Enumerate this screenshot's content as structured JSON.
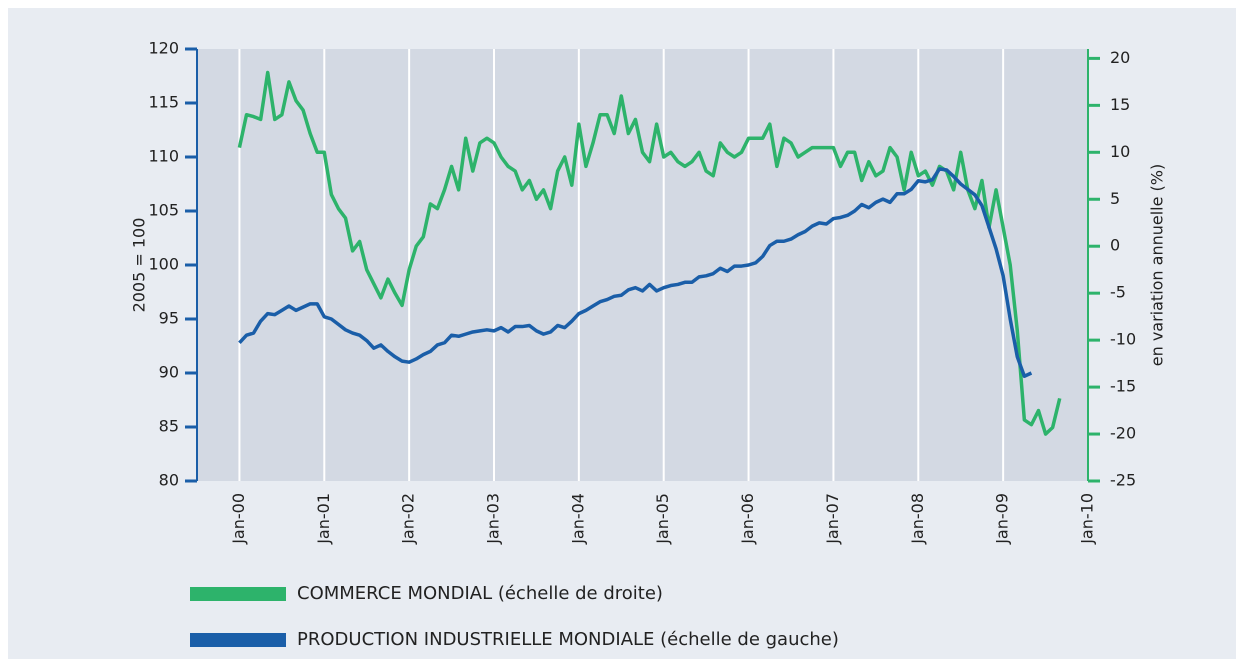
{
  "chart_data": {
    "type": "line",
    "x": [
      "2000-01",
      "2000-02",
      "2000-03",
      "2000-04",
      "2000-05",
      "2000-06",
      "2000-07",
      "2000-08",
      "2000-09",
      "2000-10",
      "2000-11",
      "2000-12",
      "2001-01",
      "2001-02",
      "2001-03",
      "2001-04",
      "2001-05",
      "2001-06",
      "2001-07",
      "2001-08",
      "2001-09",
      "2001-10",
      "2001-11",
      "2001-12",
      "2002-01",
      "2002-02",
      "2002-03",
      "2002-04",
      "2002-05",
      "2002-06",
      "2002-07",
      "2002-08",
      "2002-09",
      "2002-10",
      "2002-11",
      "2002-12",
      "2003-01",
      "2003-02",
      "2003-03",
      "2003-04",
      "2003-05",
      "2003-06",
      "2003-07",
      "2003-08",
      "2003-09",
      "2003-10",
      "2003-11",
      "2003-12",
      "2004-01",
      "2004-02",
      "2004-03",
      "2004-04",
      "2004-05",
      "2004-06",
      "2004-07",
      "2004-08",
      "2004-09",
      "2004-10",
      "2004-11",
      "2004-12",
      "2005-01",
      "2005-02",
      "2005-03",
      "2005-04",
      "2005-05",
      "2005-06",
      "2005-07",
      "2005-08",
      "2005-09",
      "2005-10",
      "2005-11",
      "2005-12",
      "2006-01",
      "2006-02",
      "2006-03",
      "2006-04",
      "2006-05",
      "2006-06",
      "2006-07",
      "2006-08",
      "2006-09",
      "2006-10",
      "2006-11",
      "2006-12",
      "2007-01",
      "2007-02",
      "2007-03",
      "2007-04",
      "2007-05",
      "2007-06",
      "2007-07",
      "2007-08",
      "2007-09",
      "2007-10",
      "2007-11",
      "2007-12",
      "2008-01",
      "2008-02",
      "2008-03",
      "2008-04",
      "2008-05",
      "2008-06",
      "2008-07",
      "2008-08",
      "2008-09",
      "2008-10",
      "2008-11",
      "2008-12",
      "2009-01",
      "2009-02",
      "2009-03",
      "2009-04",
      "2009-05",
      "2009-06",
      "2009-07",
      "2009-08",
      "2009-09"
    ],
    "xlim": [
      "1999-07",
      "2010-01"
    ],
    "xticks": [
      {
        "value": "2000-01",
        "label": "Jan-00"
      },
      {
        "value": "2001-01",
        "label": "Jan-01"
      },
      {
        "value": "2002-01",
        "label": "Jan-02"
      },
      {
        "value": "2003-01",
        "label": "Jan-03"
      },
      {
        "value": "2004-01",
        "label": "Jan-04"
      },
      {
        "value": "2005-01",
        "label": "Jan-05"
      },
      {
        "value": "2006-01",
        "label": "Jan-06"
      },
      {
        "value": "2007-01",
        "label": "Jan-07"
      },
      {
        "value": "2008-01",
        "label": "Jan-08"
      },
      {
        "value": "2009-01",
        "label": "Jan-09"
      },
      {
        "value": "2010-01",
        "label": "Jan-10"
      }
    ],
    "ylim": [
      80,
      120
    ],
    "yticks": [
      80,
      85,
      90,
      95,
      100,
      105,
      110,
      115,
      120
    ],
    "y2lim": [
      -25,
      21
    ],
    "y2ticks": [
      -25,
      -20,
      -15,
      -10,
      -5,
      0,
      5,
      10,
      15,
      20
    ],
    "ylabel": "2005 = 100",
    "y2label": "en variation annuelle (%)",
    "series": [
      {
        "name": "COMMERCE MONDIAL (échelle de droite)",
        "color": "#2db36b",
        "axis": "y2",
        "values": [
          10.5,
          14.0,
          13.8,
          13.5,
          18.5,
          13.5,
          14.0,
          17.5,
          15.5,
          14.5,
          12.0,
          10.0,
          10.0,
          5.5,
          4.0,
          3.0,
          -0.5,
          0.5,
          -2.5,
          -4.0,
          -5.5,
          -3.5,
          -5.0,
          -6.3,
          -2.5,
          0.0,
          1.0,
          4.5,
          4.0,
          6.0,
          8.5,
          6.0,
          11.5,
          8.0,
          11.0,
          11.5,
          11.0,
          9.5,
          8.5,
          8.0,
          6.0,
          7.0,
          5.0,
          6.0,
          4.0,
          8.0,
          9.5,
          6.5,
          13.0,
          8.5,
          11.0,
          14.0,
          14.0,
          12.0,
          16.0,
          12.0,
          13.5,
          10.0,
          9.0,
          13.0,
          9.5,
          10.0,
          9.0,
          8.5,
          9.0,
          10.0,
          8.0,
          7.5,
          11.0,
          10.0,
          9.5,
          10.0,
          11.5,
          11.5,
          11.5,
          13.0,
          8.5,
          11.5,
          11.0,
          9.5,
          10.0,
          10.5,
          10.5,
          10.5,
          10.5,
          8.5,
          10.0,
          10.0,
          7.0,
          9.0,
          7.5,
          8.0,
          10.5,
          9.5,
          6.0,
          10.0,
          7.5,
          8.0,
          6.5,
          8.5,
          8.0,
          6.0,
          10.0,
          6.0,
          4.0,
          7.0,
          2.0,
          6.0,
          2.0,
          -2.0,
          -9.0,
          -18.5,
          -19.0,
          -17.5,
          -20.0,
          -19.3,
          -16.2
        ]
      },
      {
        "name": "PRODUCTION INDUSTRIELLE MONDIALE (échelle de gauche)",
        "color": "#1a5ea8",
        "values": [
          92.8,
          93.5,
          93.7,
          94.8,
          95.5,
          95.4,
          95.8,
          96.2,
          95.8,
          96.1,
          96.4,
          96.4,
          95.2,
          95.0,
          94.5,
          94.0,
          93.7,
          93.5,
          93.0,
          92.3,
          92.6,
          92.0,
          91.5,
          91.1,
          91.0,
          91.3,
          91.7,
          92.0,
          92.6,
          92.8,
          93.5,
          93.4,
          93.6,
          93.8,
          93.9,
          94.0,
          93.9,
          94.2,
          93.8,
          94.3,
          94.3,
          94.4,
          93.9,
          93.6,
          93.8,
          94.4,
          94.2,
          94.8,
          95.5,
          95.8,
          96.2,
          96.6,
          96.8,
          97.1,
          97.2,
          97.7,
          97.9,
          97.6,
          98.2,
          97.6,
          97.9,
          98.1,
          98.2,
          98.4,
          98.4,
          98.9,
          99.0,
          99.2,
          99.7,
          99.4,
          99.9,
          99.9,
          100.0,
          100.2,
          100.8,
          101.8,
          102.2,
          102.2,
          102.4,
          102.8,
          103.1,
          103.6,
          103.9,
          103.8,
          104.3,
          104.4,
          104.6,
          105.0,
          105.6,
          105.3,
          105.8,
          106.1,
          105.8,
          106.6,
          106.6,
          107.0,
          107.8,
          107.7,
          107.9,
          108.9,
          108.8,
          108.2,
          107.5,
          107.0,
          106.5,
          105.5,
          103.5,
          101.5,
          99.0,
          95.0,
          91.5,
          89.7,
          90.0,
          null,
          null,
          null,
          null
        ]
      }
    ],
    "grid": true
  }
}
